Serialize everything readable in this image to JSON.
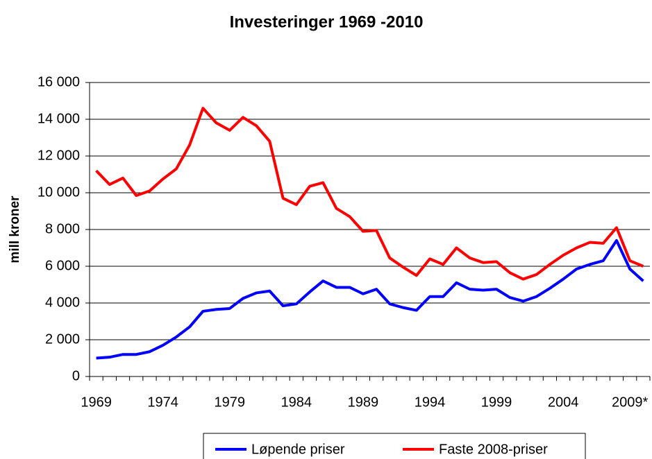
{
  "chart_data": {
    "type": "line",
    "title": "Investeringer 1969 -2010",
    "y_label": "mill kroner",
    "categories": [
      "1969",
      null,
      null,
      null,
      null,
      "1974",
      null,
      null,
      null,
      null,
      "1979",
      null,
      null,
      null,
      null,
      "1984",
      null,
      null,
      null,
      null,
      "1989",
      null,
      null,
      null,
      null,
      "1994",
      null,
      null,
      null,
      null,
      "1999",
      null,
      null,
      null,
      null,
      "2004",
      null,
      null,
      null,
      null,
      "2009*",
      null
    ],
    "series": [
      {
        "name": "Løpende priser",
        "color": "#0000ff",
        "values": [
          1000,
          1050,
          1200,
          1200,
          1350,
          1700,
          2150,
          2700,
          3550,
          3650,
          3700,
          4250,
          4550,
          4650,
          3850,
          3950,
          4600,
          5200,
          4850,
          4850,
          4500,
          4750,
          3950,
          3750,
          3600,
          4350,
          4350,
          5100,
          4750,
          4700,
          4750,
          4300,
          4100,
          4350,
          4800,
          5300,
          5850,
          6100,
          6300,
          7400,
          5850,
          5200
        ]
      },
      {
        "name": "Faste 2008-priser",
        "color": "#ff0000",
        "values": [
          11200,
          10450,
          10800,
          9850,
          10100,
          10750,
          11300,
          12600,
          14600,
          13800,
          13400,
          14100,
          13650,
          12800,
          9700,
          9350,
          10350,
          10550,
          9150,
          8700,
          7900,
          7950,
          6450,
          5950,
          5500,
          6400,
          6100,
          7000,
          6450,
          6200,
          6250,
          5650,
          5300,
          5550,
          6100,
          6600,
          7000,
          7300,
          7250,
          8100,
          6300,
          6000
        ]
      }
    ],
    "ylim": [
      0,
      16000
    ],
    "yticks": [
      0,
      {
        "value": 2000,
        "label": "2 000"
      },
      {
        "value": 4000,
        "label": "4 000"
      },
      {
        "value": 6000,
        "label": "6 000"
      },
      {
        "value": 8000,
        "label": "8 000"
      },
      {
        "value": 10000,
        "label": "10 000"
      },
      {
        "value": 12000,
        "label": "12 000"
      },
      {
        "value": 14000,
        "label": "14 000"
      },
      {
        "value": 16000,
        "label": "16 000"
      }
    ],
    "grid": true,
    "legend": "bottom"
  }
}
